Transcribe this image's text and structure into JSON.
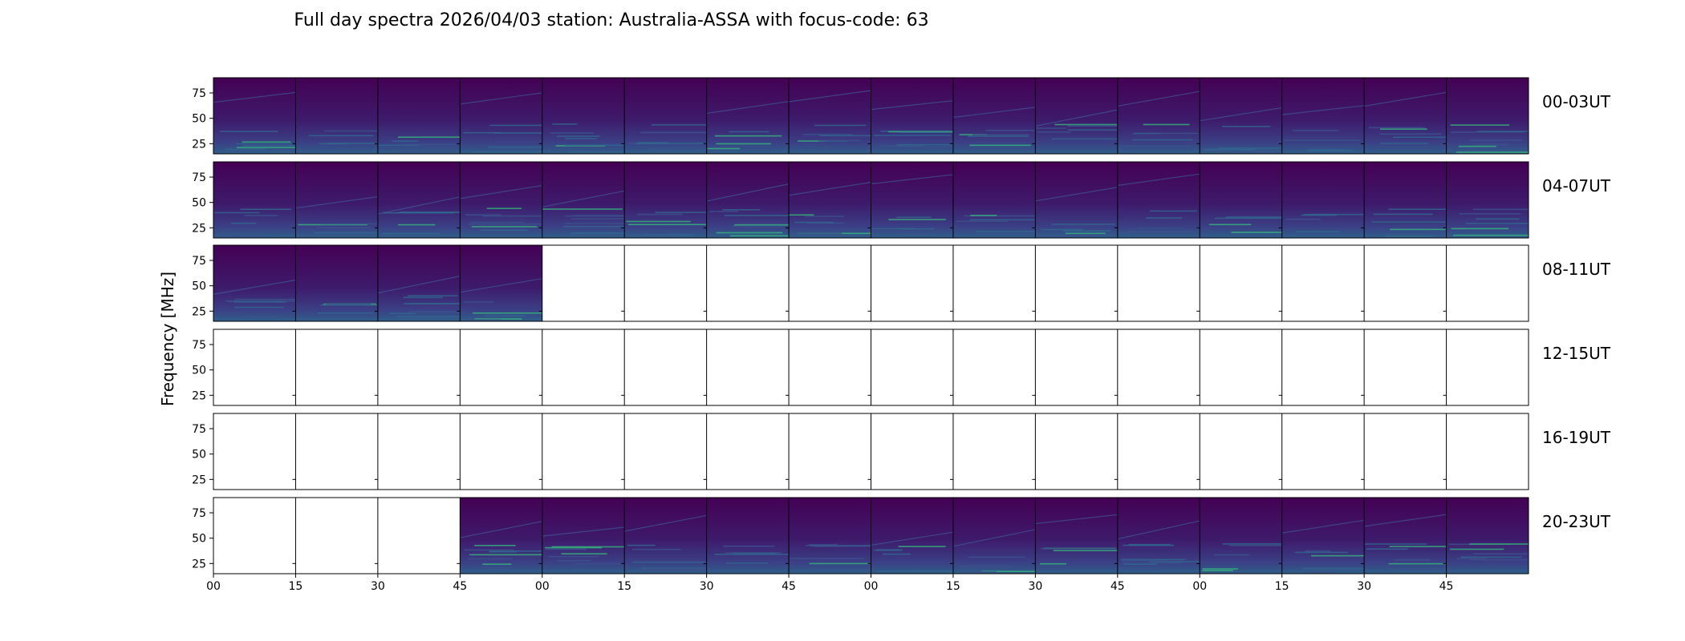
{
  "chart_data": {
    "type": "heatmap",
    "title": "Full day spectra 2026/04/03 station: Australia-ASSA with focus-code: 63",
    "ylabel": "Frequency [MHz]",
    "xlabel": "",
    "ylim": [
      15,
      90
    ],
    "yticks": [
      25,
      50,
      75
    ],
    "xtick_labels": [
      "00",
      "15",
      "30",
      "45",
      "00",
      "15",
      "30",
      "45",
      "00",
      "15",
      "30",
      "45",
      "00",
      "15",
      "30",
      "45"
    ],
    "columns_per_row": 16,
    "minutes_per_column": 15,
    "colormap": "viridis",
    "rows": [
      {
        "label": "00-03UT",
        "has_data": [
          true,
          true,
          true,
          true,
          true,
          true,
          true,
          true,
          true,
          true,
          true,
          true,
          true,
          true,
          true,
          true
        ]
      },
      {
        "label": "04-07UT",
        "has_data": [
          true,
          true,
          true,
          true,
          true,
          true,
          true,
          true,
          true,
          true,
          true,
          true,
          true,
          true,
          true,
          true
        ]
      },
      {
        "label": "08-11UT",
        "has_data": [
          true,
          true,
          true,
          true,
          false,
          false,
          false,
          false,
          false,
          false,
          false,
          false,
          false,
          false,
          false,
          false
        ]
      },
      {
        "label": "12-15UT",
        "has_data": [
          false,
          false,
          false,
          false,
          false,
          false,
          false,
          false,
          false,
          false,
          false,
          false,
          false,
          false,
          false,
          false
        ]
      },
      {
        "label": "16-19UT",
        "has_data": [
          false,
          false,
          false,
          false,
          false,
          false,
          false,
          false,
          false,
          false,
          false,
          false,
          false,
          false,
          false,
          false
        ]
      },
      {
        "label": "20-23UT",
        "has_data": [
          false,
          false,
          false,
          true,
          true,
          true,
          true,
          true,
          true,
          true,
          true,
          true,
          true,
          true,
          true,
          true
        ]
      }
    ]
  },
  "colors": {
    "background": "#3e1a6b",
    "low": "#440154",
    "mid": "#31688e",
    "high": "#35b779",
    "peak": "#fde725"
  }
}
